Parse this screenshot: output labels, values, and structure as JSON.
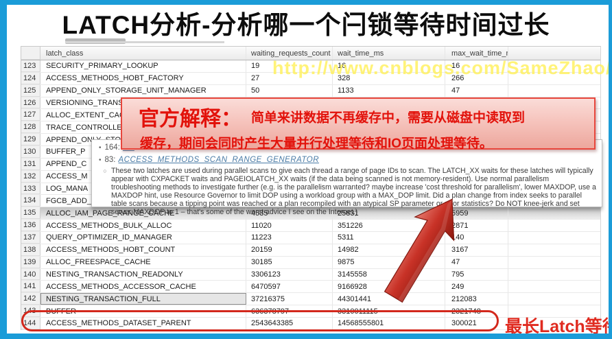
{
  "slide": {
    "title": "LATCH分析-分析哪一个闩锁等待时间过长",
    "watermark": "http://www.cnblogs.com/SameZhao/"
  },
  "colors": {
    "frame_blue": "#1b9cd8",
    "accent_red": "#d3281c",
    "note_text_red": "#e2120b",
    "watermark_yellow": "#fff054",
    "link_blue": "#4a7ba6"
  },
  "table": {
    "columns": {
      "latch_class": "latch_class",
      "waiting_requests_count": "waiting_requests_count",
      "wait_time_ms": "wait_time_ms",
      "max_wait_time_ms": "max_wait_time_ms"
    },
    "rows": [
      {
        "n": "123",
        "latch": "SECURITY_PRIMARY_LOOKUP",
        "wrc": "19",
        "wt": "16",
        "mwt": "16"
      },
      {
        "n": "124",
        "latch": "ACCESS_METHODS_HOBT_FACTORY",
        "wrc": "27",
        "wt": "328",
        "mwt": "266"
      },
      {
        "n": "125",
        "latch": "APPEND_ONLY_STORAGE_UNIT_MANAGER",
        "wrc": "50",
        "wt": "1133",
        "mwt": "47"
      },
      {
        "n": "126",
        "latch": "VERSIONING_TRANS",
        "wrc": "",
        "wt": "",
        "mwt": ""
      },
      {
        "n": "127",
        "latch": "ALLOC_EXTENT_CAC",
        "wrc": "",
        "wt": "",
        "mwt": ""
      },
      {
        "n": "128",
        "latch": "TRACE_CONTROLLER",
        "wrc": "",
        "wt": "",
        "mwt": ""
      },
      {
        "n": "129",
        "latch": "APPEND_ONLY_STOR",
        "wrc": "",
        "wt": "",
        "mwt": ""
      },
      {
        "n": "130",
        "latch": "BUFFER_P",
        "wrc": "",
        "wt": "",
        "mwt": ""
      },
      {
        "n": "131",
        "latch": "APPEND_C",
        "wrc": "",
        "wt": "",
        "mwt": ""
      },
      {
        "n": "132",
        "latch": "ACCESS_M",
        "wrc": "",
        "wt": "",
        "mwt": ""
      },
      {
        "n": "133",
        "latch": "LOG_MANA",
        "wrc": "",
        "wt": "",
        "mwt": ""
      },
      {
        "n": "134",
        "latch": "FGCB_ADD_",
        "wrc": "",
        "wt": "",
        "mwt": ""
      },
      {
        "n": "135",
        "latch": "ALLOC_IAM_PAGE_RANGE_CACHE",
        "wrc": "4535",
        "wt": "25831",
        "mwt": "5959",
        "shaded": true
      },
      {
        "n": "136",
        "latch": "ACCESS_METHODS_BULK_ALLOC",
        "wrc": "11020",
        "wt": "351226",
        "mwt": "2871"
      },
      {
        "n": "137",
        "latch": "QUERY_OPTIMIZER_ID_MANAGER",
        "wrc": "11223",
        "wt": "5311",
        "mwt": "140"
      },
      {
        "n": "138",
        "latch": "ACCESS_METHODS_HOBT_COUNT",
        "wrc": "20159",
        "wt": "14982",
        "mwt": "3167"
      },
      {
        "n": "139",
        "latch": "ALLOC_FREESPACE_CACHE",
        "wrc": "30185",
        "wt": "9875",
        "mwt": "47"
      },
      {
        "n": "140",
        "latch": "NESTING_TRANSACTION_READONLY",
        "wrc": "3306123",
        "wt": "3145558",
        "mwt": "795"
      },
      {
        "n": "141",
        "latch": "ACCESS_METHODS_ACCESSOR_CACHE",
        "wrc": "6470597",
        "wt": "9166928",
        "mwt": "249"
      },
      {
        "n": "142",
        "latch": "NESTING_TRANSACTION_FULL",
        "wrc": "37216375",
        "wt": "44301441",
        "mwt": "212083",
        "selected": true
      },
      {
        "n": "143",
        "latch": "BUFFER",
        "wrc": "636378797",
        "wt": "3310011115",
        "mwt": "2321748"
      },
      {
        "n": "144",
        "latch": "ACCESS_METHODS_DATASET_PARENT",
        "wrc": "2543643385",
        "wt": "14568555801",
        "mwt": "300021"
      }
    ]
  },
  "official_note": {
    "heading": "官方解释：",
    "line1": "简单来讲数据不再缓存中，需要从磁盘中读取到",
    "line2": "缓存，期间会同时产生大量并行处理等待和IO页面处理等待。"
  },
  "tooltip": {
    "bullet1_prefix": "164:",
    "bullet1_link": "AC",
    "bullet2_prefix": "83:",
    "bullet2_link": "ACCESS_METHODS_SCAN_RANGE_GENERATOR",
    "paragraph": "These two latches are used during parallel scans to give each thread a range of page IDs to scan. The LATCH_XX waits for these latches will typically appear with CXPACKET waits and PAGEIOLATCH_XX waits (if the data being scanned is not memory-resident). Use normal parallelism troubleshooting methods to investigate further (e.g. is the parallelism warranted? maybe increase 'cost threshold for parallelism', lower MAXDOP, use a MAXDOP hint, use Resource Governor to limit DOP using a workload group with a MAX_DOP limit. Did a plan change from index seeks to parallel table scans because a tipping point was reached or a plan recompiled with an atypical SP parameter or poor statistics? Do NOT knee-jerk and set server MAXDOP to 1 – that's some of the worst advice I see on the Internet.)"
  },
  "callout": {
    "label": "最长Latch等待"
  }
}
